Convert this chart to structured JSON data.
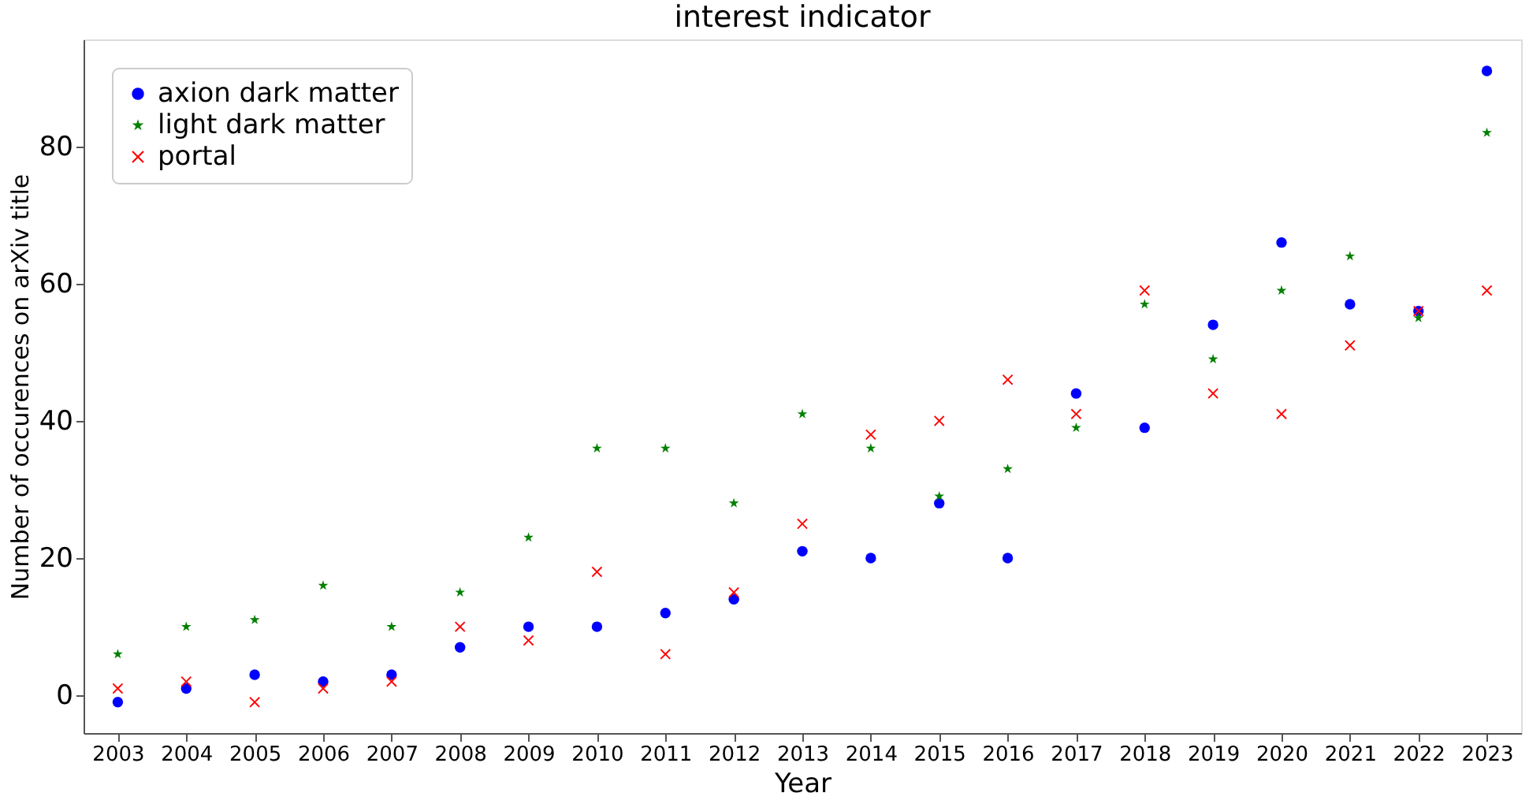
{
  "chart_data": {
    "type": "scatter",
    "title": "interest indicator",
    "xlabel": "Year",
    "ylabel": "Number of occurences on arXiv title",
    "categories": [
      "2003",
      "2004",
      "2005",
      "2006",
      "2007",
      "2008",
      "2009",
      "2010",
      "2011",
      "2012",
      "2013",
      "2014",
      "2015",
      "2016",
      "2017",
      "2018",
      "2019",
      "2020",
      "2021",
      "2022",
      "2023"
    ],
    "series": [
      {
        "name": "axion dark matter",
        "color": "#0000ff",
        "marker": "circle",
        "values": [
          -1,
          1,
          3,
          2,
          3,
          7,
          10,
          10,
          12,
          14,
          21,
          20,
          28,
          20,
          44,
          39,
          54,
          66,
          57,
          56,
          91
        ]
      },
      {
        "name": "light dark matter",
        "color": "#008000",
        "marker": "star",
        "values": [
          6,
          10,
          11,
          16,
          10,
          15,
          23,
          36,
          36,
          28,
          41,
          36,
          29,
          33,
          39,
          57,
          49,
          59,
          64,
          55,
          82
        ]
      },
      {
        "name": "portal",
        "color": "#ff0000",
        "marker": "cross",
        "values": [
          1,
          2,
          -1,
          1,
          2,
          10,
          8,
          18,
          6,
          15,
          25,
          38,
          40,
          46,
          41,
          59,
          44,
          41,
          51,
          56,
          59
        ]
      }
    ],
    "ylim": [
      -5.5,
      95.6
    ],
    "yticks": [
      0,
      20,
      40,
      60,
      80
    ],
    "grid": false,
    "legend": "top left"
  }
}
